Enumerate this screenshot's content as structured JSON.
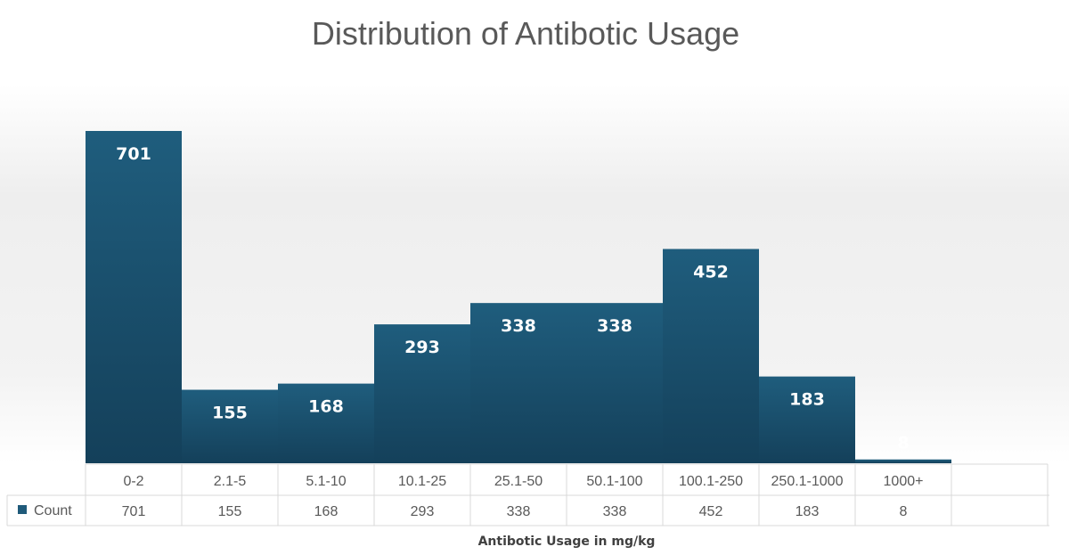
{
  "chart_data": {
    "type": "bar",
    "title": "Distribution of Antibotic Usage",
    "xlabel": "Antibotic Usage in mg/kg",
    "ylabel": "",
    "categories": [
      "0-2",
      "2.1-5",
      "5.1-10",
      "10.1-25",
      "25.1-50",
      "50.1-100",
      "100.1-250",
      "250.1-1000",
      "1000+"
    ],
    "series": [
      {
        "name": "Count",
        "values": [
          701,
          155,
          168,
          293,
          338,
          338,
          452,
          183,
          8
        ]
      }
    ],
    "ylim": [
      0,
      701
    ],
    "grid": false,
    "data_table": true,
    "bar_color": "#1f5a7a"
  }
}
